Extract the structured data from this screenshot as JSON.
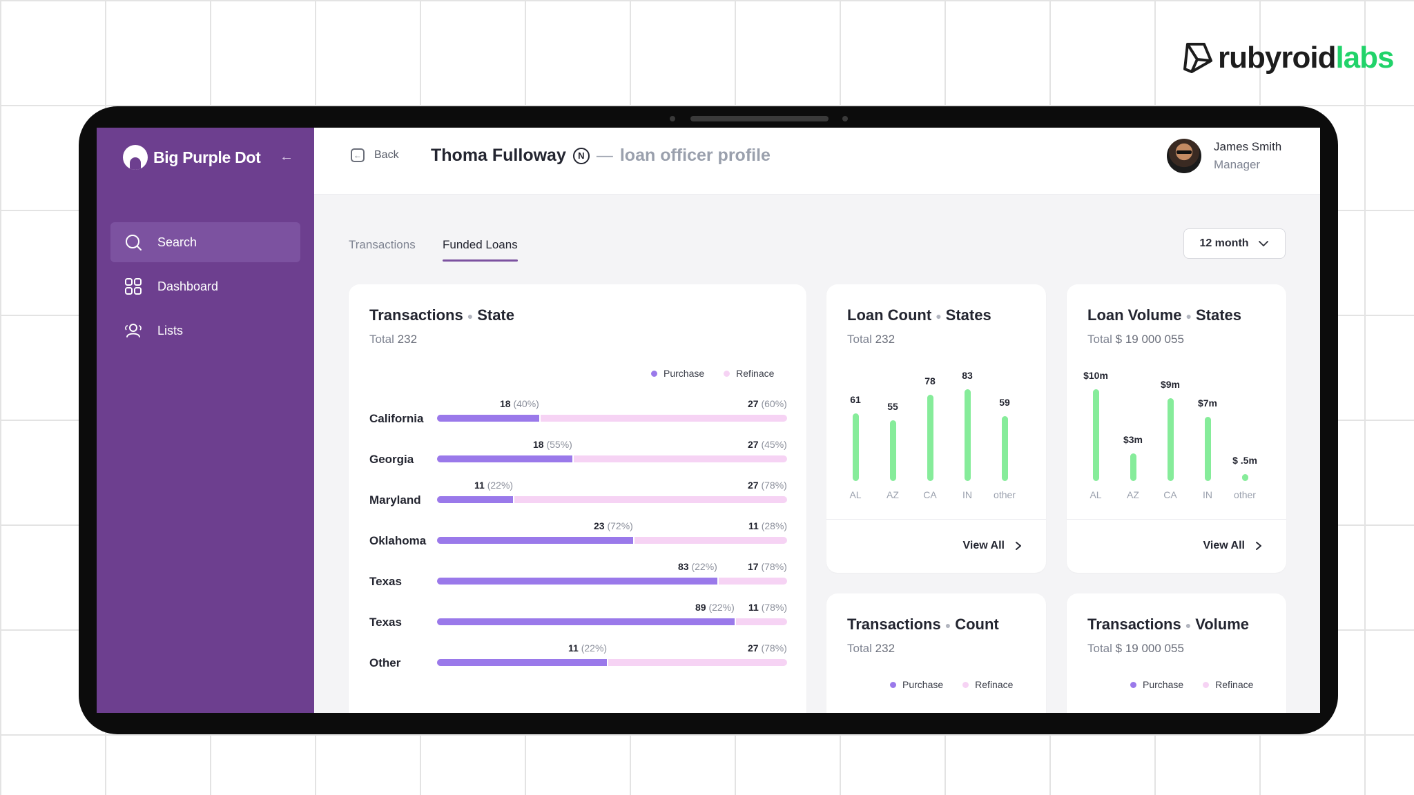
{
  "brand": {
    "part1": "rubyroid",
    "part2": "labs"
  },
  "sidebar": {
    "logo": "Big Purple Dot",
    "collapse_icon": "arrow-left-icon",
    "items": [
      {
        "label": "Search",
        "icon": "search-icon",
        "active": true
      },
      {
        "label": "Dashboard",
        "icon": "grid-icon",
        "active": false
      },
      {
        "label": "Lists",
        "icon": "users-icon",
        "active": false
      }
    ]
  },
  "header": {
    "back_label": "Back",
    "name": "Thoma Fulloway",
    "badge": "N",
    "dash": "—",
    "subtitle": "loan officer profile",
    "user": {
      "name": "James Smith",
      "role": "Manager"
    }
  },
  "tabs": [
    {
      "label": "Transactions",
      "active": false
    },
    {
      "label": "Funded Loans",
      "active": true
    }
  ],
  "period_select": {
    "value": "12 month"
  },
  "colors": {
    "purchase": "#9a79ea",
    "refinance": "#f6d3f4",
    "bar": "#86ec9a",
    "sidebar": "#6d3f8f",
    "accent": "#7c52a0"
  },
  "legend": {
    "purchase": "Purchase",
    "refinance": "Refinace"
  },
  "cards": {
    "tx_state": {
      "title_a": "Transactions",
      "title_b": "State",
      "total_label": "Total",
      "total_value": "232",
      "rows": [
        {
          "state": "California",
          "p_count": "18",
          "p_pct": "(40%)",
          "r_count": "27",
          "r_pct": "(60%)",
          "purchase_share": 0.295
        },
        {
          "state": "Georgia",
          "p_count": "18",
          "p_pct": "(55%)",
          "r_count": "27",
          "r_pct": "(45%)",
          "purchase_share": 0.39
        },
        {
          "state": "Maryland",
          "p_count": "11",
          "p_pct": "(22%)",
          "r_count": "27",
          "r_pct": "(78%)",
          "purchase_share": 0.22
        },
        {
          "state": "Oklahoma",
          "p_count": "23",
          "p_pct": "(72%)",
          "r_count": "11",
          "r_pct": "(28%)",
          "purchase_share": 0.565
        },
        {
          "state": "Texas",
          "p_count": "83",
          "p_pct": "(22%)",
          "r_count": "17",
          "r_pct": "(78%)",
          "purchase_share": 0.805
        },
        {
          "state": "Texas",
          "p_count": "89",
          "p_pct": "(22%)",
          "r_count": "11",
          "r_pct": "(78%)",
          "purchase_share": 0.855
        },
        {
          "state": "Other",
          "p_count": "11",
          "p_pct": "(22%)",
          "r_count": "27",
          "r_pct": "(78%)",
          "purchase_share": 0.49
        }
      ]
    },
    "loan_count": {
      "title_a": "Loan Count",
      "title_b": "States",
      "total_label": "Total",
      "total_value": "232",
      "view_all": "View All"
    },
    "loan_volume": {
      "title_a": "Loan Volume",
      "title_b": "States",
      "total_label": "Total",
      "total_value": "$ 19 000 055",
      "view_all": "View All"
    },
    "tx_count": {
      "title_a": "Transactions",
      "title_b": "Count",
      "total_label": "Total",
      "total_value": "232"
    },
    "tx_volume": {
      "title_a": "Transactions",
      "title_b": "Volume",
      "total_label": "Total",
      "total_value": "$ 19 000 055"
    }
  },
  "chart_data": [
    {
      "type": "bar",
      "orientation": "horizontal-stacked",
      "title": "Transactions • State",
      "categories": [
        "California",
        "Georgia",
        "Maryland",
        "Oklahoma",
        "Texas",
        "Texas",
        "Other"
      ],
      "series": [
        {
          "name": "Purchase",
          "values": [
            18,
            18,
            11,
            23,
            83,
            89,
            11
          ]
        },
        {
          "name": "Refinace",
          "values": [
            27,
            27,
            27,
            11,
            17,
            11,
            27
          ]
        }
      ]
    },
    {
      "type": "bar",
      "title": "Loan Count • States",
      "categories": [
        "AL",
        "AZ",
        "CA",
        "IN",
        "other"
      ],
      "values": [
        61,
        55,
        78,
        83,
        59
      ],
      "labels": [
        "61",
        "55",
        "78",
        "83",
        "59"
      ],
      "ylim": [
        0,
        100
      ]
    },
    {
      "type": "bar",
      "title": "Loan Volume • States",
      "categories": [
        "AL",
        "AZ",
        "CA",
        "IN",
        "other"
      ],
      "values": [
        10,
        3,
        9,
        7,
        0.5
      ],
      "labels": [
        "$10m",
        "$3m",
        "$9m",
        "$7m",
        "$ .5m"
      ],
      "ylim": [
        0,
        12
      ]
    }
  ]
}
